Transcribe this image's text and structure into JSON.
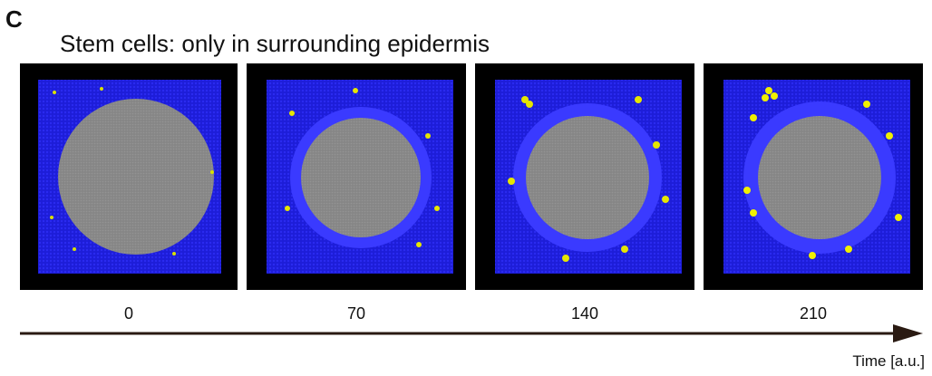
{
  "panel_label": "C",
  "title": "Stem cells: only in surrounding epidermis",
  "frames": [
    {
      "time": 0
    },
    {
      "time": 70
    },
    {
      "time": 140
    },
    {
      "time": 210
    }
  ],
  "axis_label": "Time [a.u.]"
}
